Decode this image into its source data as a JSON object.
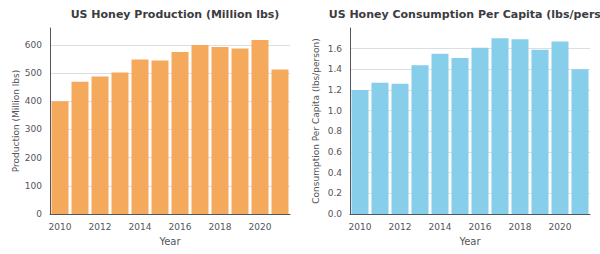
{
  "chart_data": [
    {
      "type": "bar",
      "title": "US Honey Production (Million lbs)",
      "categories": [
        "2010",
        null,
        "2012",
        null,
        "2014",
        null,
        "2016",
        null,
        "2018",
        null,
        "2020",
        null
      ],
      "values": [
        400,
        469,
        488,
        502,
        548,
        545,
        575,
        600,
        593,
        587,
        617,
        513
      ],
      "color": "#F5A95C",
      "xlabel": "Year",
      "ylabel": "Production (Million lbs)",
      "ylim": [
        0,
        660
      ],
      "yticks": [
        0,
        100,
        200,
        300,
        400,
        500,
        600
      ],
      "grid": true
    },
    {
      "type": "bar",
      "title": "US Honey Consumption Per Capita (lbs/person)",
      "categories": [
        "2010",
        null,
        "2012",
        null,
        "2014",
        null,
        "2016",
        null,
        "2018",
        null,
        "2020",
        null
      ],
      "values": [
        1.2,
        1.27,
        1.26,
        1.44,
        1.55,
        1.51,
        1.61,
        1.7,
        1.69,
        1.59,
        1.67,
        1.4
      ],
      "color": "#87CEEB",
      "xlabel": "Year",
      "ylabel": "Consumption Per Capita (lbs/person)",
      "ylim": [
        0,
        1.8
      ],
      "yticks": [
        {
          "value": 0,
          "label": "0.0"
        },
        0.2,
        0.4,
        0.6,
        0.8,
        {
          "value": 1,
          "label": "1.0"
        },
        1.2,
        1.4,
        1.6
      ],
      "grid": true
    }
  ]
}
